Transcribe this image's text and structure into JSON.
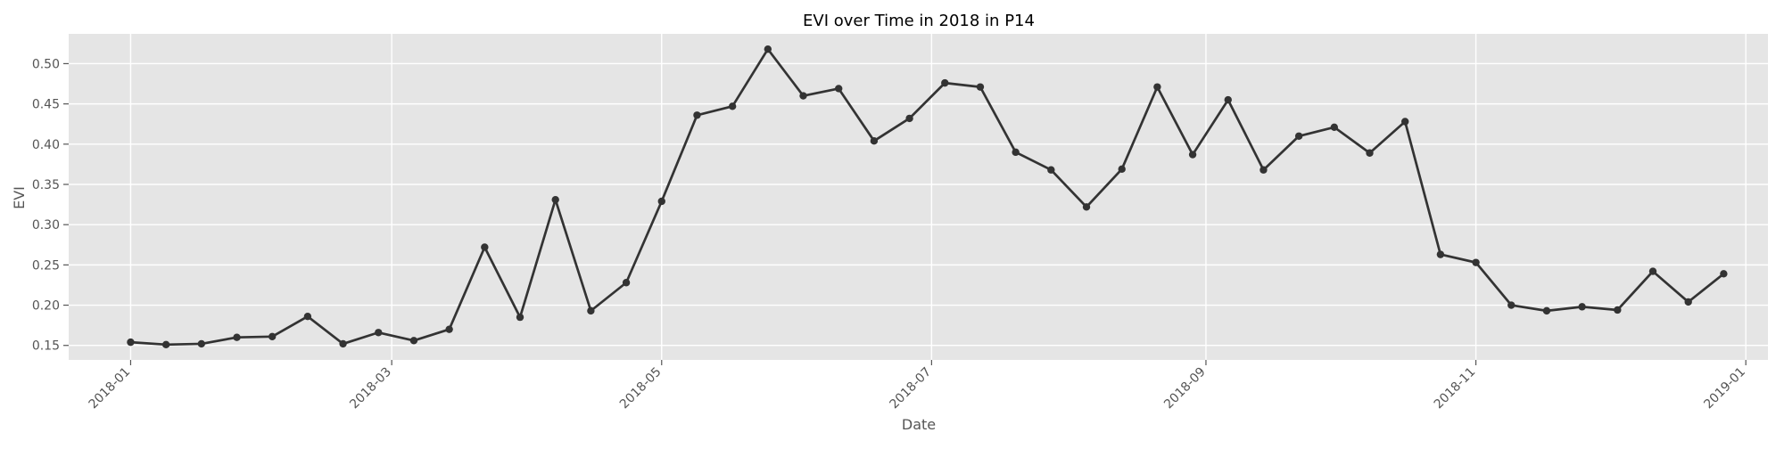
{
  "chart_data": {
    "type": "line",
    "title": "EVI over Time in 2018 in P14",
    "xlabel": "Date",
    "ylabel": "EVI",
    "x_type": "date",
    "xlim": [
      "2017-12-18",
      "2019-01-06"
    ],
    "ylim": [
      0.132,
      0.537
    ],
    "x_ticks": [
      "2018-01-01",
      "2018-03-01",
      "2018-05-01",
      "2018-07-01",
      "2018-09-01",
      "2018-11-01",
      "2019-01-01"
    ],
    "x_tick_labels": [
      "2018-01",
      "2018-03",
      "2018-05",
      "2018-07",
      "2018-09",
      "2018-11",
      "2019-01"
    ],
    "y_ticks": [
      0.15,
      0.2,
      0.25,
      0.3,
      0.35,
      0.4,
      0.45,
      0.5
    ],
    "y_tick_labels": [
      "0.15",
      "0.20",
      "0.25",
      "0.30",
      "0.35",
      "0.40",
      "0.45",
      "0.50"
    ],
    "grid": true,
    "legend": "none",
    "colors": {
      "background": "#e5e5e5",
      "grid": "#ffffff",
      "line": "#333333",
      "text": "#555555",
      "title": "#000000"
    },
    "series": [
      {
        "x": [
          "2018-01-01",
          "2018-01-09",
          "2018-01-17",
          "2018-01-25",
          "2018-02-02",
          "2018-02-10",
          "2018-02-18",
          "2018-02-26",
          "2018-03-06",
          "2018-03-14",
          "2018-03-22",
          "2018-03-30",
          "2018-04-07",
          "2018-04-15",
          "2018-04-23",
          "2018-05-01",
          "2018-05-09",
          "2018-05-17",
          "2018-05-25",
          "2018-06-02",
          "2018-06-10",
          "2018-06-18",
          "2018-06-26",
          "2018-07-04",
          "2018-07-12",
          "2018-07-20",
          "2018-07-28",
          "2018-08-05",
          "2018-08-13",
          "2018-08-21",
          "2018-08-29",
          "2018-09-06",
          "2018-09-14",
          "2018-09-22",
          "2018-09-30",
          "2018-10-08",
          "2018-10-16",
          "2018-10-24",
          "2018-11-01",
          "2018-11-09",
          "2018-11-17",
          "2018-11-25",
          "2018-12-03",
          "2018-12-11",
          "2018-12-19",
          "2018-12-27"
        ],
        "values": [
          0.154,
          0.151,
          0.152,
          0.16,
          0.161,
          0.186,
          0.152,
          0.166,
          0.156,
          0.17,
          0.272,
          0.185,
          0.331,
          0.193,
          0.228,
          0.329,
          0.436,
          0.447,
          0.518,
          0.46,
          0.469,
          0.404,
          0.432,
          0.476,
          0.471,
          0.39,
          0.368,
          0.322,
          0.369,
          0.471,
          0.387,
          0.455,
          0.368,
          0.41,
          0.421,
          0.389,
          0.428,
          0.263,
          0.253,
          0.2,
          0.193,
          0.198,
          0.194,
          0.242,
          0.204,
          0.239
        ]
      }
    ]
  }
}
